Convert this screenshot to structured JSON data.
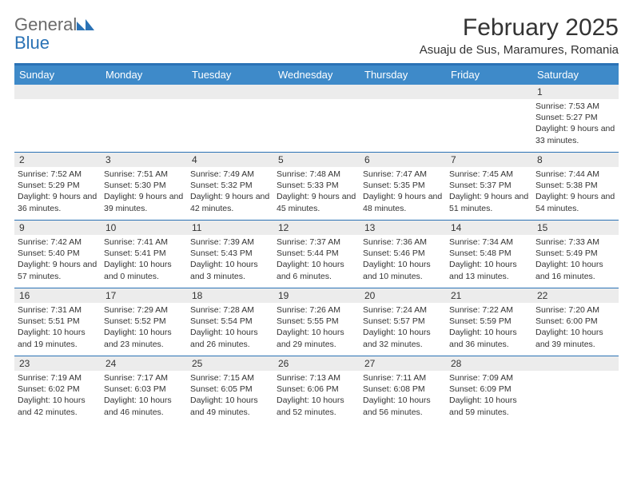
{
  "brand": {
    "part1": "General",
    "part2": "Blue"
  },
  "title": "February 2025",
  "location": "Asuaju de Sus, Maramures, Romania",
  "colors": {
    "accent": "#2a72b5",
    "header_row": "#3e8ac9",
    "day_stripe": "#ececec",
    "text": "#333333",
    "logo_gray": "#6a6a6a"
  },
  "calendar": {
    "day_names": [
      "Sunday",
      "Monday",
      "Tuesday",
      "Wednesday",
      "Thursday",
      "Friday",
      "Saturday"
    ],
    "weeks": [
      [
        null,
        null,
        null,
        null,
        null,
        null,
        {
          "n": "1",
          "sunrise": "7:53 AM",
          "sunset": "5:27 PM",
          "daylight": "9 hours and 33 minutes."
        }
      ],
      [
        {
          "n": "2",
          "sunrise": "7:52 AM",
          "sunset": "5:29 PM",
          "daylight": "9 hours and 36 minutes."
        },
        {
          "n": "3",
          "sunrise": "7:51 AM",
          "sunset": "5:30 PM",
          "daylight": "9 hours and 39 minutes."
        },
        {
          "n": "4",
          "sunrise": "7:49 AM",
          "sunset": "5:32 PM",
          "daylight": "9 hours and 42 minutes."
        },
        {
          "n": "5",
          "sunrise": "7:48 AM",
          "sunset": "5:33 PM",
          "daylight": "9 hours and 45 minutes."
        },
        {
          "n": "6",
          "sunrise": "7:47 AM",
          "sunset": "5:35 PM",
          "daylight": "9 hours and 48 minutes."
        },
        {
          "n": "7",
          "sunrise": "7:45 AM",
          "sunset": "5:37 PM",
          "daylight": "9 hours and 51 minutes."
        },
        {
          "n": "8",
          "sunrise": "7:44 AM",
          "sunset": "5:38 PM",
          "daylight": "9 hours and 54 minutes."
        }
      ],
      [
        {
          "n": "9",
          "sunrise": "7:42 AM",
          "sunset": "5:40 PM",
          "daylight": "9 hours and 57 minutes."
        },
        {
          "n": "10",
          "sunrise": "7:41 AM",
          "sunset": "5:41 PM",
          "daylight": "10 hours and 0 minutes."
        },
        {
          "n": "11",
          "sunrise": "7:39 AM",
          "sunset": "5:43 PM",
          "daylight": "10 hours and 3 minutes."
        },
        {
          "n": "12",
          "sunrise": "7:37 AM",
          "sunset": "5:44 PM",
          "daylight": "10 hours and 6 minutes."
        },
        {
          "n": "13",
          "sunrise": "7:36 AM",
          "sunset": "5:46 PM",
          "daylight": "10 hours and 10 minutes."
        },
        {
          "n": "14",
          "sunrise": "7:34 AM",
          "sunset": "5:48 PM",
          "daylight": "10 hours and 13 minutes."
        },
        {
          "n": "15",
          "sunrise": "7:33 AM",
          "sunset": "5:49 PM",
          "daylight": "10 hours and 16 minutes."
        }
      ],
      [
        {
          "n": "16",
          "sunrise": "7:31 AM",
          "sunset": "5:51 PM",
          "daylight": "10 hours and 19 minutes."
        },
        {
          "n": "17",
          "sunrise": "7:29 AM",
          "sunset": "5:52 PM",
          "daylight": "10 hours and 23 minutes."
        },
        {
          "n": "18",
          "sunrise": "7:28 AM",
          "sunset": "5:54 PM",
          "daylight": "10 hours and 26 minutes."
        },
        {
          "n": "19",
          "sunrise": "7:26 AM",
          "sunset": "5:55 PM",
          "daylight": "10 hours and 29 minutes."
        },
        {
          "n": "20",
          "sunrise": "7:24 AM",
          "sunset": "5:57 PM",
          "daylight": "10 hours and 32 minutes."
        },
        {
          "n": "21",
          "sunrise": "7:22 AM",
          "sunset": "5:59 PM",
          "daylight": "10 hours and 36 minutes."
        },
        {
          "n": "22",
          "sunrise": "7:20 AM",
          "sunset": "6:00 PM",
          "daylight": "10 hours and 39 minutes."
        }
      ],
      [
        {
          "n": "23",
          "sunrise": "7:19 AM",
          "sunset": "6:02 PM",
          "daylight": "10 hours and 42 minutes."
        },
        {
          "n": "24",
          "sunrise": "7:17 AM",
          "sunset": "6:03 PM",
          "daylight": "10 hours and 46 minutes."
        },
        {
          "n": "25",
          "sunrise": "7:15 AM",
          "sunset": "6:05 PM",
          "daylight": "10 hours and 49 minutes."
        },
        {
          "n": "26",
          "sunrise": "7:13 AM",
          "sunset": "6:06 PM",
          "daylight": "10 hours and 52 minutes."
        },
        {
          "n": "27",
          "sunrise": "7:11 AM",
          "sunset": "6:08 PM",
          "daylight": "10 hours and 56 minutes."
        },
        {
          "n": "28",
          "sunrise": "7:09 AM",
          "sunset": "6:09 PM",
          "daylight": "10 hours and 59 minutes."
        },
        null
      ]
    ],
    "labels": {
      "sunrise_prefix": "Sunrise: ",
      "sunset_prefix": "Sunset: ",
      "daylight_prefix": "Daylight: "
    }
  }
}
